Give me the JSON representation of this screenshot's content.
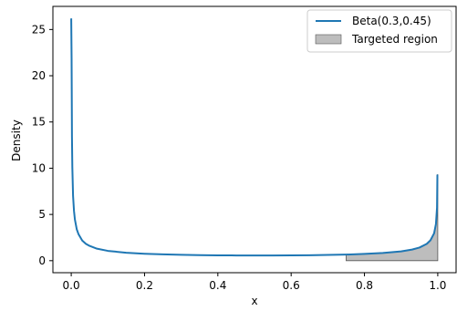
{
  "chart_data": {
    "type": "line",
    "xlabel": "x",
    "ylabel": "Density",
    "xlim": [
      -0.05,
      1.05
    ],
    "ylim": [
      -1.3,
      27.5
    ],
    "xticks": [
      0.0,
      0.2,
      0.4,
      0.6,
      0.8,
      1.0
    ],
    "xtick_labels": [
      "0.0",
      "0.2",
      "0.4",
      "0.6",
      "0.8",
      "1.0"
    ],
    "yticks": [
      0,
      5,
      10,
      15,
      20,
      25
    ],
    "ytick_labels": [
      "0",
      "5",
      "10",
      "15",
      "20",
      "25"
    ],
    "grid": false,
    "legend_position": "top-right",
    "series": [
      {
        "name": "Beta(0.3,0.45)",
        "kind": "line",
        "color": "#1f77b4",
        "x": [
          0.0,
          0.001,
          0.002,
          0.003,
          0.005,
          0.0075,
          0.01,
          0.015,
          0.02,
          0.03,
          0.04,
          0.05,
          0.07,
          0.1,
          0.15,
          0.2,
          0.25,
          0.3,
          0.35,
          0.4,
          0.45,
          0.5,
          0.55,
          0.6,
          0.65,
          0.7,
          0.75,
          0.8,
          0.85,
          0.9,
          0.93,
          0.95,
          0.97,
          0.98,
          0.99,
          0.995,
          0.998,
          0.999
        ],
        "y": [
          26.2,
          21.8,
          13.4,
          10.1,
          7.0,
          5.4,
          4.45,
          3.4,
          2.85,
          2.18,
          1.82,
          1.6,
          1.3,
          1.06,
          0.86,
          0.75,
          0.68,
          0.63,
          0.6,
          0.58,
          0.565,
          0.56,
          0.56,
          0.57,
          0.59,
          0.62,
          0.66,
          0.73,
          0.83,
          1.01,
          1.2,
          1.42,
          1.82,
          2.2,
          2.96,
          3.96,
          5.75,
          9.3
        ]
      }
    ],
    "region": {
      "name": "Targeted region",
      "color": "#bdbdbd",
      "x": [
        0.75,
        1.0
      ]
    }
  }
}
